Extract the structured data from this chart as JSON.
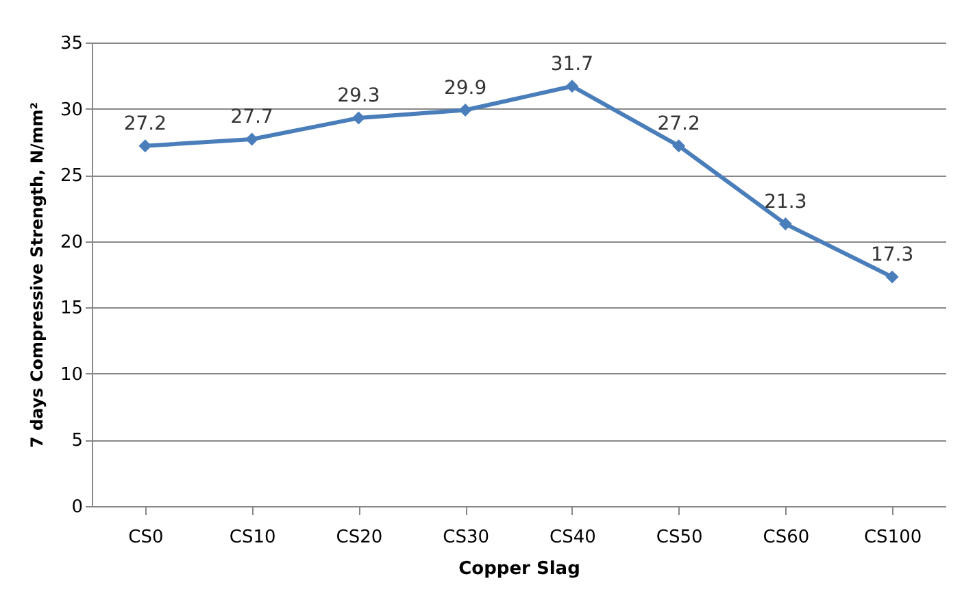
{
  "chart_data": {
    "type": "line",
    "xlabel": "Copper Slag",
    "ylabel": "7 days Compressive Strength, N/mm²",
    "categories": [
      "CS0",
      "CS10",
      "CS20",
      "CS30",
      "CS40",
      "CS50",
      "CS60",
      "CS100"
    ],
    "series": [
      {
        "color": "#4a7ebb",
        "values": [
          27.2,
          27.7,
          29.3,
          29.9,
          31.7,
          27.2,
          21.3,
          17.3
        ]
      }
    ],
    "ylim": [
      0,
      35
    ],
    "yticks": [
      0,
      5,
      10,
      15,
      20,
      25,
      30,
      35
    ],
    "grid": "y",
    "marker": "diamond",
    "line_style": "solid",
    "data_labels": true,
    "legend": false
  }
}
